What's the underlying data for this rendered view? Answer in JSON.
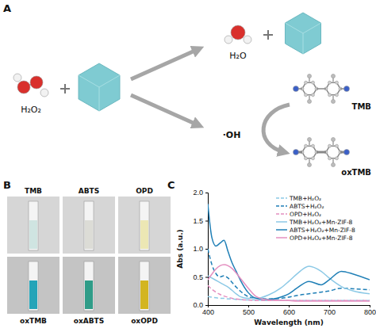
{
  "figure": {
    "panel_letters": [
      "A",
      "B",
      "C"
    ]
  },
  "diagram": {
    "reactant": "H₂O₂",
    "product_water": "H₂O",
    "radical": "·OH",
    "substrate": "TMB",
    "oxidized": "oxTMB"
  },
  "photos": {
    "substrates": [
      "TMB",
      "ABTS",
      "OPD"
    ],
    "oxidized": [
      "oxTMB",
      "oxABTS",
      "oxOPD"
    ]
  },
  "chart_data": {
    "type": "line",
    "x_label": "Wavelength (nm)",
    "y_label": "Abs (a.u.)",
    "x": [
      400,
      410,
      420,
      430,
      440,
      450,
      460,
      470,
      480,
      500,
      520,
      550,
      580,
      600,
      620,
      650,
      680,
      700,
      730,
      760,
      800
    ],
    "xlim": [
      400,
      800
    ],
    "xticks": [
      400,
      500,
      600,
      700,
      800
    ],
    "ylim": [
      0,
      2
    ],
    "yticks": [
      {
        "value": 0,
        "label": "0.0"
      },
      {
        "value": 0.5,
        "label": "0.5"
      },
      {
        "value": 1,
        "label": "1.0"
      },
      {
        "value": 1.5,
        "label": "1.5"
      },
      {
        "value": 2,
        "label": "2.0"
      }
    ],
    "legend": "upper right",
    "series": [
      {
        "name": "TMB+H₂O₂",
        "color": "#8cc9e6",
        "line_style": "dashed",
        "values": [
          0.15,
          0.14,
          0.13,
          0.12,
          0.12,
          0.11,
          0.11,
          0.1,
          0.1,
          0.09,
          0.09,
          0.08,
          0.08,
          0.08,
          0.08,
          0.08,
          0.08,
          0.08,
          0.08,
          0.08,
          0.08
        ]
      },
      {
        "name": "ABTS+H₂O₂",
        "color": "#1f7fb6",
        "line_style": "dashed",
        "values": [
          1.0,
          0.72,
          0.56,
          0.5,
          0.52,
          0.48,
          0.4,
          0.32,
          0.25,
          0.15,
          0.12,
          0.11,
          0.12,
          0.14,
          0.17,
          0.2,
          0.23,
          0.25,
          0.3,
          0.29,
          0.27
        ]
      },
      {
        "name": "OPD+H₂O₂",
        "color": "#e48fc0",
        "line_style": "dashed",
        "values": [
          0.35,
          0.28,
          0.23,
          0.19,
          0.16,
          0.14,
          0.12,
          0.11,
          0.1,
          0.09,
          0.08,
          0.08,
          0.08,
          0.08,
          0.08,
          0.08,
          0.08,
          0.08,
          0.08,
          0.08,
          0.08
        ]
      },
      {
        "name": "TMB+H₂O₂+Mn-ZIF-8",
        "color": "#8cc9e6",
        "line_style": "solid",
        "values": [
          0.52,
          0.48,
          0.44,
          0.4,
          0.36,
          0.32,
          0.26,
          0.2,
          0.15,
          0.12,
          0.12,
          0.18,
          0.3,
          0.42,
          0.55,
          0.69,
          0.6,
          0.48,
          0.33,
          0.25,
          0.2
        ]
      },
      {
        "name": "ABTS+H₂O₂+Mn-ZIF-8",
        "color": "#1f7fb6",
        "line_style": "solid",
        "values": [
          1.8,
          1.2,
          1.05,
          1.1,
          1.15,
          0.95,
          0.75,
          0.6,
          0.45,
          0.22,
          0.12,
          0.1,
          0.14,
          0.2,
          0.3,
          0.42,
          0.36,
          0.45,
          0.6,
          0.55,
          0.45
        ]
      },
      {
        "name": "OPD+H₂O₂+Mn-ZIF-8",
        "color": "#e48fc0",
        "line_style": "solid",
        "values": [
          0.45,
          0.55,
          0.64,
          0.7,
          0.72,
          0.7,
          0.65,
          0.57,
          0.48,
          0.3,
          0.15,
          0.09,
          0.08,
          0.08,
          0.07,
          0.07,
          0.07,
          0.07,
          0.07,
          0.07,
          0.07
        ]
      }
    ]
  }
}
